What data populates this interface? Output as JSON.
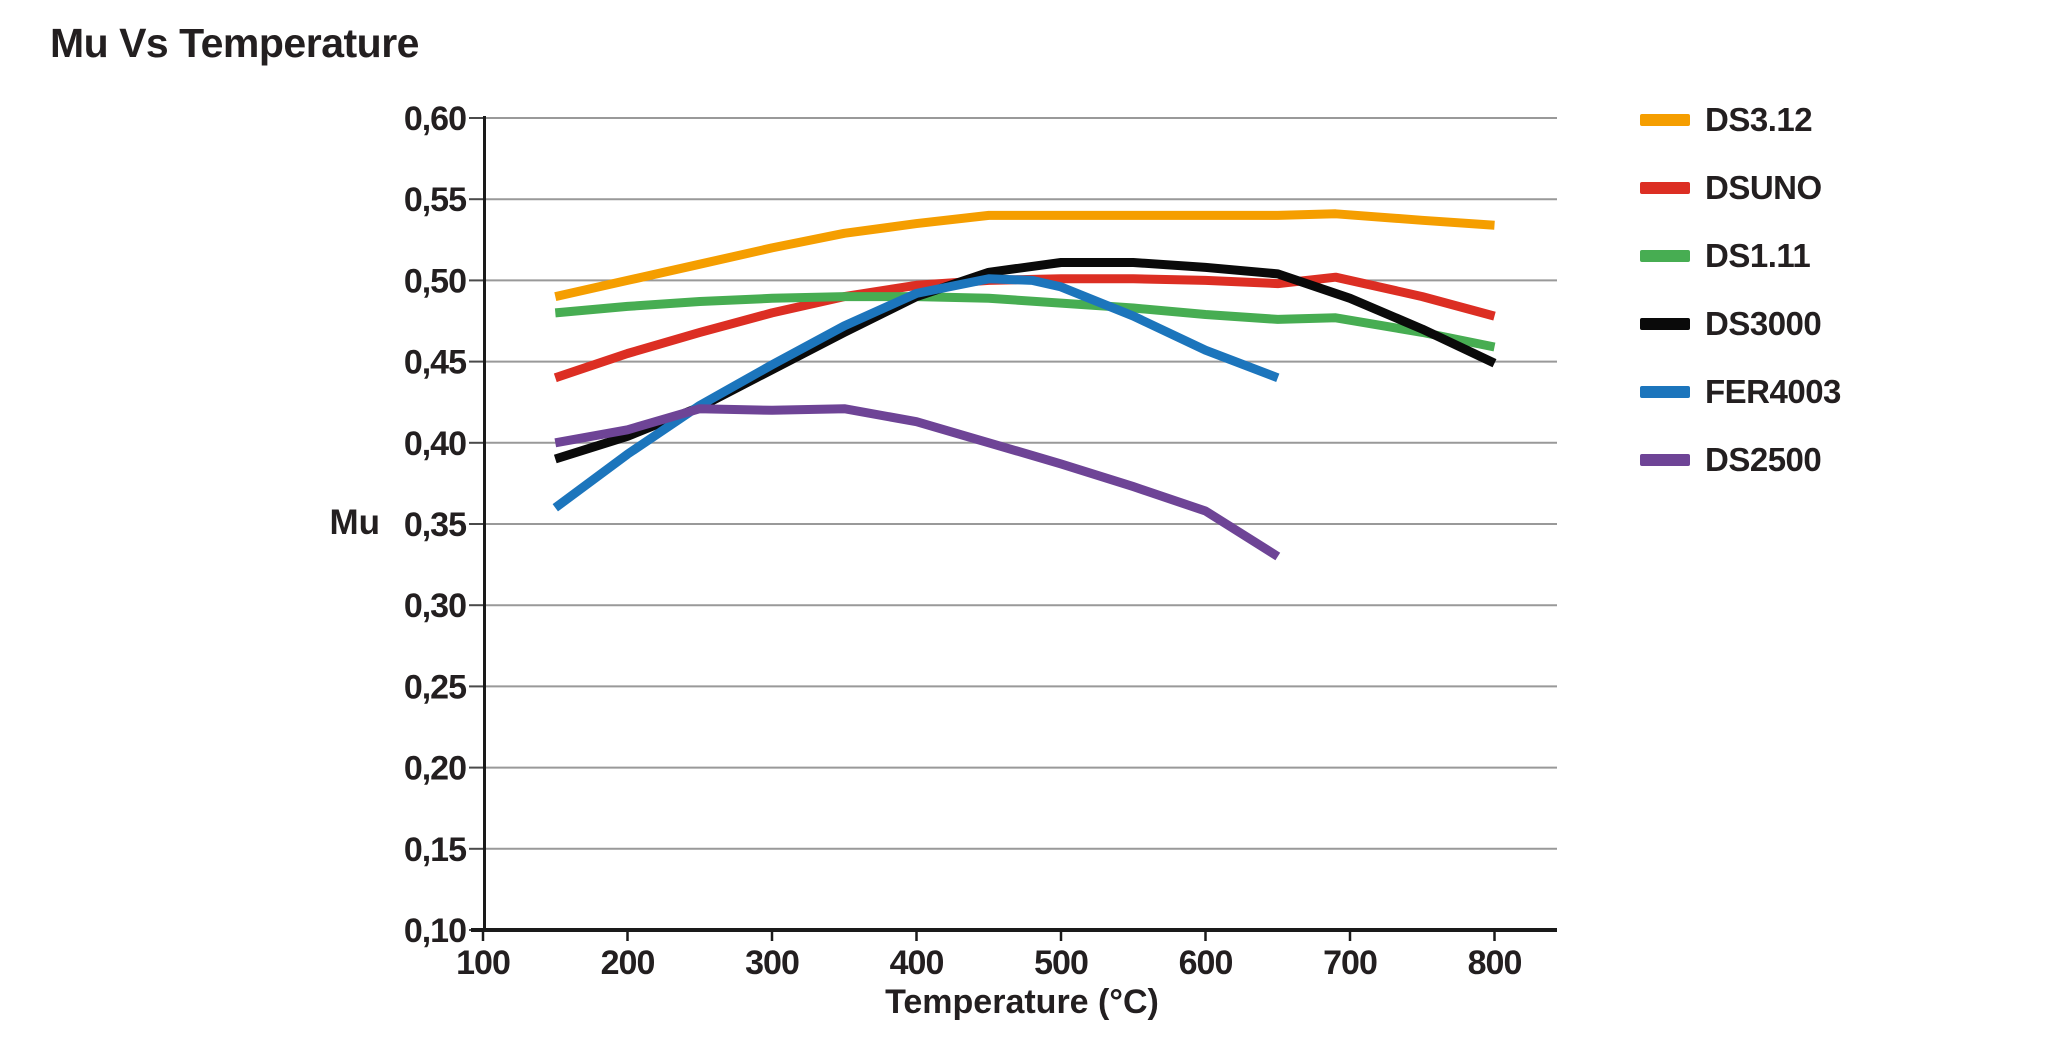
{
  "title": "Mu Vs Temperature",
  "axis": {
    "y_label": "Mu",
    "x_label": "Temperature (°C)"
  },
  "colors": {
    "text": "#231F20",
    "gridline": "#999999",
    "axis": "#1A1A1A",
    "background": "#FFFFFF"
  },
  "chart_data": {
    "type": "line",
    "title": "Mu Vs Temperature",
    "xlabel": "Temperature (°C)",
    "ylabel": "Mu",
    "xlim": [
      88,
      843
    ],
    "ylim": [
      0.1,
      0.6
    ],
    "grid": "horizontal",
    "legend_position": "right",
    "decimal_separator": ",",
    "x_ticks": [
      100,
      200,
      300,
      400,
      500,
      600,
      700,
      800
    ],
    "y_ticks": [
      {
        "value": 0.1,
        "label": "0,10"
      },
      {
        "value": 0.15,
        "label": "0,15"
      },
      {
        "value": 0.2,
        "label": "0,20"
      },
      {
        "value": 0.25,
        "label": "0,25"
      },
      {
        "value": 0.3,
        "label": "0,30"
      },
      {
        "value": 0.35,
        "label": "0,35"
      },
      {
        "value": 0.4,
        "label": "0,40"
      },
      {
        "value": 0.45,
        "label": "0,45"
      },
      {
        "value": 0.5,
        "label": "0,50"
      },
      {
        "value": 0.55,
        "label": "0,55"
      },
      {
        "value": 0.6,
        "label": "0,60"
      }
    ],
    "series": [
      {
        "name": "DS3.12",
        "color": "#F59E00",
        "points": [
          [
            150,
            0.49
          ],
          [
            200,
            0.5
          ],
          [
            250,
            0.51
          ],
          [
            300,
            0.52
          ],
          [
            350,
            0.529
          ],
          [
            400,
            0.535
          ],
          [
            450,
            0.54
          ],
          [
            500,
            0.54
          ],
          [
            550,
            0.54
          ],
          [
            600,
            0.54
          ],
          [
            650,
            0.54
          ],
          [
            690,
            0.541
          ],
          [
            750,
            0.537
          ],
          [
            800,
            0.534
          ]
        ]
      },
      {
        "name": "DSUNO",
        "color": "#DC2E23",
        "points": [
          [
            150,
            0.44
          ],
          [
            200,
            0.455
          ],
          [
            250,
            0.468
          ],
          [
            300,
            0.48
          ],
          [
            350,
            0.49
          ],
          [
            400,
            0.497
          ],
          [
            450,
            0.5
          ],
          [
            500,
            0.501
          ],
          [
            550,
            0.501
          ],
          [
            600,
            0.5
          ],
          [
            650,
            0.498
          ],
          [
            690,
            0.502
          ],
          [
            750,
            0.49
          ],
          [
            800,
            0.478
          ]
        ]
      },
      {
        "name": "DS1.11",
        "color": "#47AD52",
        "points": [
          [
            150,
            0.48
          ],
          [
            200,
            0.484
          ],
          [
            250,
            0.487
          ],
          [
            300,
            0.489
          ],
          [
            350,
            0.49
          ],
          [
            400,
            0.49
          ],
          [
            450,
            0.489
          ],
          [
            500,
            0.486
          ],
          [
            550,
            0.483
          ],
          [
            600,
            0.479
          ],
          [
            650,
            0.476
          ],
          [
            690,
            0.477
          ],
          [
            750,
            0.468
          ],
          [
            800,
            0.459
          ]
        ]
      },
      {
        "name": "DS3000",
        "color": "#0A0A0A",
        "points": [
          [
            150,
            0.39
          ],
          [
            200,
            0.404
          ],
          [
            250,
            0.422
          ],
          [
            300,
            0.445
          ],
          [
            350,
            0.468
          ],
          [
            400,
            0.49
          ],
          [
            450,
            0.505
          ],
          [
            500,
            0.511
          ],
          [
            550,
            0.511
          ],
          [
            600,
            0.508
          ],
          [
            650,
            0.504
          ],
          [
            700,
            0.489
          ],
          [
            750,
            0.47
          ],
          [
            800,
            0.449
          ]
        ]
      },
      {
        "name": "FER4003",
        "color": "#1C75BC",
        "points": [
          [
            150,
            0.36
          ],
          [
            200,
            0.393
          ],
          [
            250,
            0.423
          ],
          [
            300,
            0.448
          ],
          [
            350,
            0.472
          ],
          [
            400,
            0.492
          ],
          [
            450,
            0.501
          ],
          [
            480,
            0.5
          ],
          [
            500,
            0.496
          ],
          [
            550,
            0.478
          ],
          [
            600,
            0.457
          ],
          [
            650,
            0.44
          ]
        ]
      },
      {
        "name": "DS2500",
        "color": "#6E4496",
        "points": [
          [
            150,
            0.4
          ],
          [
            200,
            0.408
          ],
          [
            250,
            0.421
          ],
          [
            300,
            0.42
          ],
          [
            350,
            0.421
          ],
          [
            400,
            0.413
          ],
          [
            450,
            0.4
          ],
          [
            500,
            0.387
          ],
          [
            550,
            0.373
          ],
          [
            600,
            0.358
          ],
          [
            650,
            0.33
          ]
        ]
      }
    ]
  }
}
